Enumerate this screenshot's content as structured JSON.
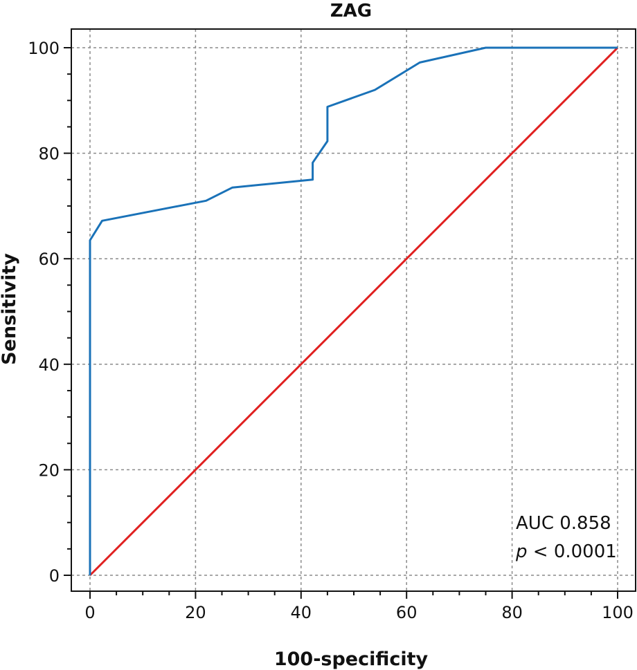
{
  "chart_data": {
    "type": "line",
    "title": "ZAG",
    "xlabel": "100-specificity",
    "ylabel": "Sensitivity",
    "xlim": [
      0,
      100
    ],
    "ylim": [
      0,
      100
    ],
    "xticks": [
      0,
      20,
      40,
      60,
      80,
      100
    ],
    "yticks": [
      0,
      20,
      40,
      60,
      80,
      100
    ],
    "grid": true,
    "series": [
      {
        "color": "#1a72b8",
        "x": [
          0,
          0,
          2.3,
          22,
          27,
          42.2,
          42.2,
          45,
          45,
          54,
          62.5,
          75,
          100
        ],
        "y": [
          0,
          63.5,
          67.2,
          71,
          73.5,
          75,
          78.2,
          82.3,
          88.8,
          92,
          97.2,
          100,
          100
        ]
      },
      {
        "color": "#e02020",
        "x": [
          0,
          100
        ],
        "y": [
          0,
          100
        ]
      }
    ],
    "annotation": {
      "auc_line": "AUC 0.858",
      "p_symbol": "p",
      "p_rest": " < 0.0001"
    }
  }
}
